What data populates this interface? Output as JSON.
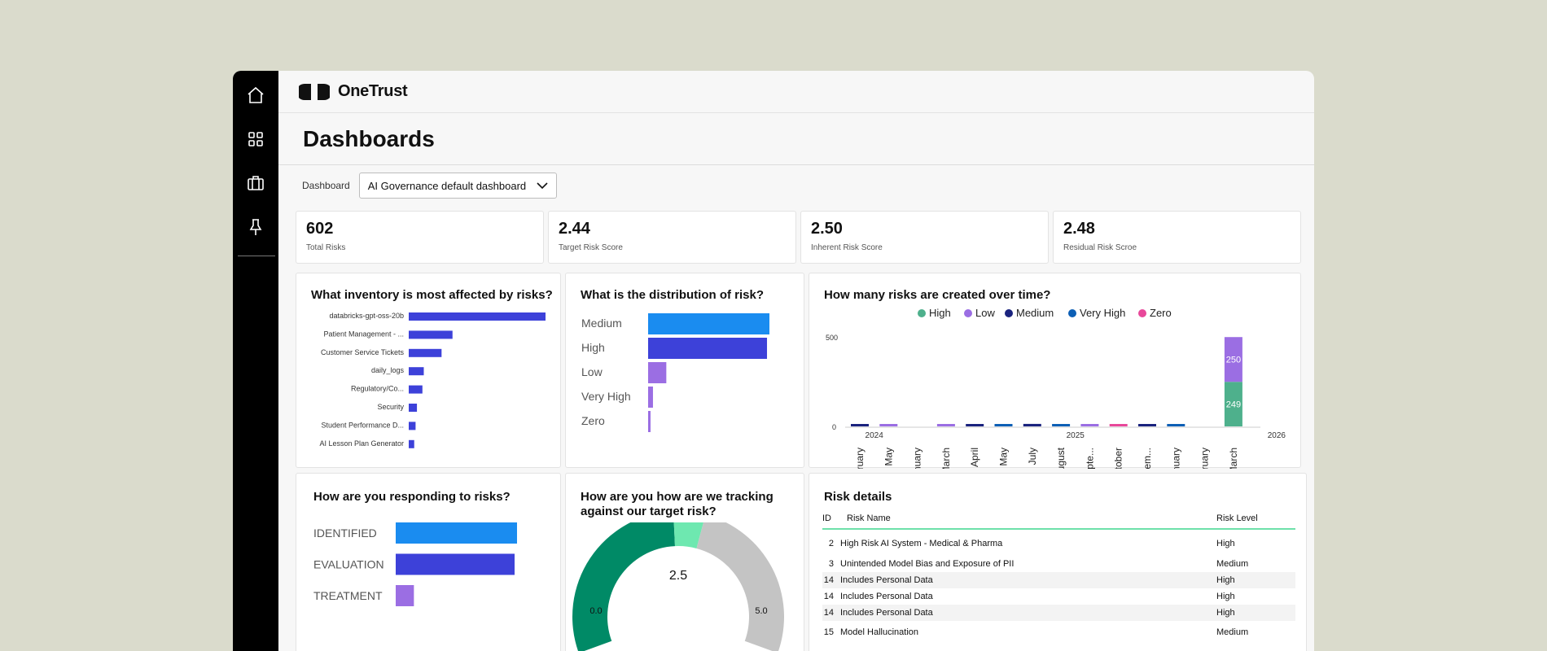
{
  "brand": {
    "name": "OneTrust"
  },
  "nav": {
    "icons": [
      "home-icon",
      "grid-icon",
      "briefcase-icon",
      "pin-icon"
    ]
  },
  "page": {
    "title": "Dashboards"
  },
  "filter": {
    "label": "Dashboard",
    "value": "AI Governance default dashboard"
  },
  "kpis": [
    {
      "value": "602",
      "label": "Total Risks"
    },
    {
      "value": "2.44",
      "label": "Target Risk Score"
    },
    {
      "value": "2.50",
      "label": "Inherent Risk Score"
    },
    {
      "value": "2.48",
      "label": "Residual Risk Scroe"
    }
  ],
  "colors": {
    "bar": "#3d41d9",
    "light_blue": "#1a8cf0",
    "purple": "#9b6ee3",
    "green": "#008a66",
    "mint": "#6ee8b0",
    "gray": "#c4c4c4",
    "pink": "#e8489a",
    "navy": "#1a237e",
    "dark_blue": "#0d5fb5",
    "teal": "#4eb08c"
  },
  "charts": {
    "inventory": {
      "title": "What inventory is most affected by risks?",
      "chart_data": {
        "type": "bar",
        "orientation": "horizontal",
        "categories": [
          "databricks-gpt-oss-20b",
          "Patient Management - ...",
          "Customer Service Tickets",
          "daily_logs",
          "Regulatory/Co...",
          "Security",
          "Student Performance D...",
          "AI Lesson Plan Generator"
        ],
        "values": [
          100,
          32,
          24,
          11,
          10,
          6,
          5,
          4
        ]
      }
    },
    "distribution": {
      "title": "What is the distribution of risk?",
      "chart_data": {
        "type": "bar",
        "orientation": "horizontal",
        "categories": [
          "Medium",
          "High",
          "Low",
          "Very High",
          "Zero"
        ],
        "values": [
          100,
          98,
          15,
          4,
          2
        ],
        "colors": [
          "#1a8cf0",
          "#3d41d9",
          "#9b6ee3",
          "#9b6ee3",
          "#9b6ee3"
        ]
      }
    },
    "over_time": {
      "title": "How many risks are created over time?",
      "chart_data": {
        "type": "bar",
        "stacked": true,
        "legend": [
          {
            "name": "High",
            "color": "#4eb08c"
          },
          {
            "name": "Low",
            "color": "#9b6ee3"
          },
          {
            "name": "Medium",
            "color": "#1a237e"
          },
          {
            "name": "Very High",
            "color": "#0d5fb5"
          },
          {
            "name": "Zero",
            "color": "#e8489a"
          }
        ],
        "categories": [
          "February",
          "May",
          "January",
          "March",
          "April",
          "May",
          "July",
          "August",
          "Septe...",
          "October",
          "Decem...",
          "January",
          "February",
          "March"
        ],
        "year_labels": [
          {
            "label": "2024",
            "after_index": 0.5
          },
          {
            "label": "2025",
            "after_index": 7.5
          },
          {
            "label": "2026",
            "after_index": 14.5
          }
        ],
        "y_ticks": [
          "0",
          "500"
        ],
        "ylim": [
          0,
          500
        ],
        "series": [
          {
            "name": "High",
            "values": [
              0,
              0,
              0,
              0,
              0,
              0,
              0,
              0,
              0,
              0,
              0,
              0,
              0,
              249
            ]
          },
          {
            "name": "Low",
            "values": [
              0,
              6,
              0,
              8,
              0,
              0,
              0,
              0,
              8,
              0,
              0,
              0,
              0,
              250
            ]
          },
          {
            "name": "Medium",
            "values": [
              6,
              0,
              0,
              0,
              10,
              0,
              14,
              0,
              0,
              0,
              8,
              0,
              0,
              0
            ]
          },
          {
            "name": "Very High",
            "values": [
              0,
              0,
              0,
              0,
              0,
              12,
              0,
              10,
              0,
              0,
              0,
              8,
              0,
              0
            ]
          },
          {
            "name": "Zero",
            "values": [
              0,
              0,
              0,
              0,
              0,
              0,
              0,
              0,
              0,
              6,
              0,
              0,
              0,
              0
            ]
          }
        ],
        "data_labels": [
          "250",
          "249"
        ]
      }
    },
    "responding": {
      "title": "How are you responding to risks?",
      "chart_data": {
        "type": "bar",
        "orientation": "horizontal",
        "categories": [
          "IDENTIFIED",
          "EVALUATION",
          "TREATMENT"
        ],
        "values": [
          100,
          98,
          15
        ],
        "colors": [
          "#1a8cf0",
          "#3d41d9",
          "#9b6ee3"
        ]
      }
    },
    "gauge": {
      "title": "How are you how are we tracking against our target risk?",
      "chart_data": {
        "type": "gauge",
        "min": 0,
        "max": 5,
        "value": 2.5,
        "target": 2.44,
        "value_label": "2.5",
        "min_label": "0.0",
        "max_label": "5.0"
      }
    }
  },
  "risk_details": {
    "title": "Risk details",
    "columns": {
      "id": "ID",
      "name": "Risk Name",
      "level": "Risk Level"
    },
    "rows": [
      {
        "id": "2",
        "name": "High Risk AI System - Medical & Pharma",
        "level": "High"
      },
      {
        "id": "3",
        "name": "Unintended Model Bias and Exposure of PII",
        "level": "Medium"
      },
      {
        "id": "14",
        "name": "Includes Personal Data",
        "level": "High"
      },
      {
        "id": "14",
        "name": "Includes Personal Data",
        "level": "High"
      },
      {
        "id": "14",
        "name": "Includes Personal Data",
        "level": "High"
      },
      {
        "id": "15",
        "name": "Model Hallucination",
        "level": "Medium"
      }
    ]
  }
}
